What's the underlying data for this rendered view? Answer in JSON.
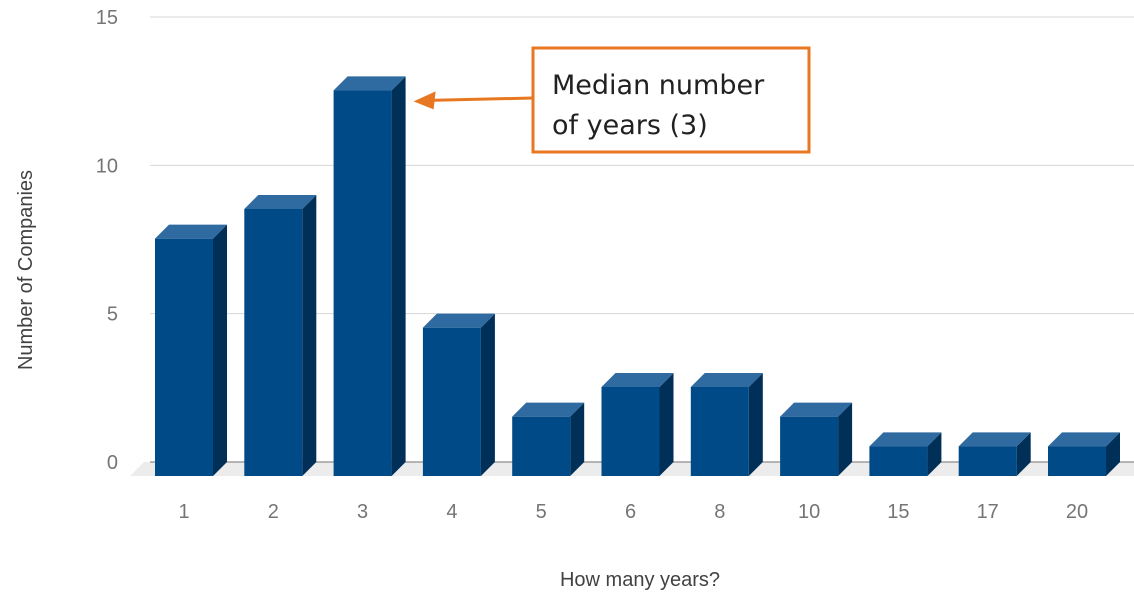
{
  "chart_data": {
    "type": "bar",
    "style": "3d-column",
    "categories": [
      "1",
      "2",
      "3",
      "4",
      "5",
      "6",
      "8",
      "10",
      "15",
      "17",
      "20"
    ],
    "values": [
      8,
      9,
      13,
      5,
      2,
      3,
      3,
      2,
      1,
      1,
      1
    ],
    "title": "",
    "xlabel": "How many years?",
    "ylabel": "Number of Companies",
    "ylim": [
      0,
      15
    ],
    "yticks": [
      "0",
      "5",
      "10",
      "15"
    ],
    "grid": true,
    "legend": "none",
    "colors": {
      "bar_front": "#004a87",
      "bar_top": "#2f6aa0",
      "bar_side": "#002f57",
      "grid": "#d7d7d7",
      "floor": "#ececec",
      "annotation_border": "#e87722",
      "annotation_arrow": "#e87722"
    },
    "annotation": {
      "lines": [
        "Median number",
        "of years (3)"
      ],
      "target_category": "3"
    }
  }
}
